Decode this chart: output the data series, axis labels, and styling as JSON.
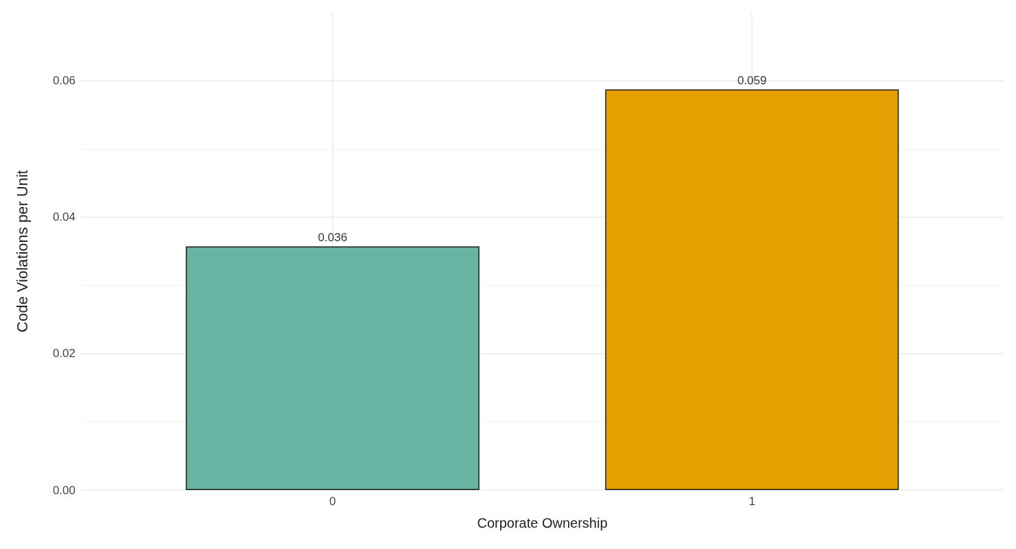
{
  "chart_data": {
    "type": "bar",
    "xlabel": "Corporate Ownership",
    "ylabel": "Code Violations per Unit",
    "categories": [
      "0",
      "1"
    ],
    "values": [
      0.0357,
      0.0587
    ],
    "colors": [
      "#69b3a2",
      "#e69f00"
    ],
    "value_labels": [
      "0.036",
      "0.059"
    ],
    "ylim": [
      0,
      0.07
    ],
    "yticks": [
      {
        "value": 0,
        "label": "0.00"
      },
      {
        "value": 0.02,
        "label": "0.02"
      },
      {
        "value": 0.04,
        "label": "0.04"
      },
      {
        "value": 0.06,
        "label": "0.06"
      }
    ],
    "grid": true
  }
}
